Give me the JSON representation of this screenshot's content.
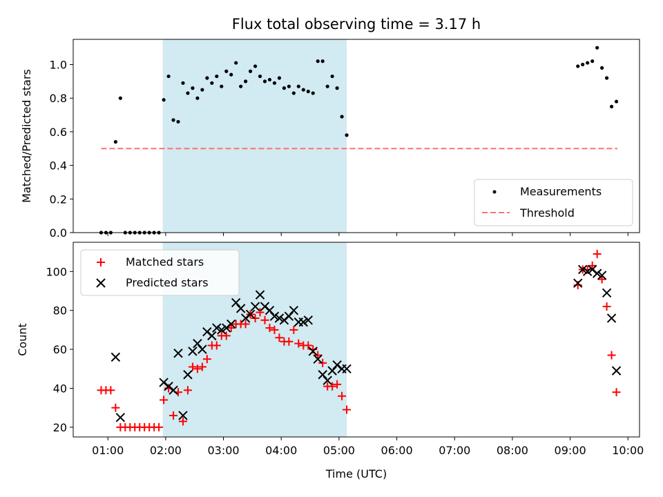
{
  "figure_title": "Flux total observing time = 3.17 h",
  "colors": {
    "shade": "#add8e6",
    "matched": "#ff0000",
    "predicted": "#000000",
    "threshold": "#ff7070",
    "measurement": "#000000"
  },
  "chart_data": [
    {
      "type": "scatter",
      "ylabel": "Matched/Predicted stars",
      "xlim": [
        "00:24",
        "10:12"
      ],
      "ylim": [
        0,
        1.15
      ],
      "y_ticks": [
        0.0,
        0.2,
        0.4,
        0.6,
        0.8,
        1.0
      ],
      "shaded_interval": [
        "01:57",
        "05:08"
      ],
      "legend": {
        "position": "lower right",
        "entries": [
          "Measurements",
          "Threshold"
        ]
      },
      "threshold": {
        "name": "Threshold",
        "value": 0.5,
        "x_range": [
          "00:53",
          "09:49"
        ]
      },
      "series": [
        {
          "name": "Measurements",
          "x": [
            "00:53",
            "00:58",
            "01:03",
            "01:08",
            "01:13",
            "01:18",
            "01:23",
            "01:28",
            "01:33",
            "01:38",
            "01:43",
            "01:48",
            "01:53",
            "01:58",
            "02:03",
            "02:08",
            "02:13",
            "02:18",
            "02:23",
            "02:28",
            "02:33",
            "02:38",
            "02:43",
            "02:48",
            "02:53",
            "02:58",
            "03:03",
            "03:08",
            "03:13",
            "03:18",
            "03:23",
            "03:28",
            "03:33",
            "03:38",
            "03:43",
            "03:48",
            "03:53",
            "03:58",
            "04:03",
            "04:08",
            "04:13",
            "04:18",
            "04:23",
            "04:28",
            "04:33",
            "04:38",
            "04:43",
            "04:48",
            "04:53",
            "04:58",
            "05:03",
            "05:08",
            "09:08",
            "09:13",
            "09:18",
            "09:23",
            "09:28",
            "09:33",
            "09:38",
            "09:43",
            "09:48"
          ],
          "y": [
            0,
            0,
            0,
            0.54,
            0.8,
            0,
            0,
            0,
            0,
            0,
            0,
            0,
            0,
            0.79,
            0.93,
            0.67,
            0.66,
            0.89,
            0.83,
            0.86,
            0.8,
            0.85,
            0.92,
            0.89,
            0.93,
            0.87,
            0.96,
            0.94,
            1.01,
            0.87,
            0.9,
            0.96,
            0.99,
            0.93,
            0.9,
            0.91,
            0.89,
            0.92,
            0.86,
            0.87,
            0.83,
            0.87,
            0.85,
            0.84,
            0.83,
            1.02,
            1.02,
            0.87,
            0.93,
            0.86,
            0.69,
            0.58,
            0.99,
            1.0,
            1.01,
            1.02,
            1.1,
            0.98,
            0.92,
            0.75,
            0.78
          ]
        }
      ]
    },
    {
      "type": "scatter",
      "xlabel": "Time (UTC)",
      "ylabel": "Count",
      "xlim": [
        "00:24",
        "10:12"
      ],
      "ylim": [
        15,
        115
      ],
      "x_ticks": [
        "01:00",
        "02:00",
        "03:00",
        "04:00",
        "05:00",
        "06:00",
        "07:00",
        "08:00",
        "09:00",
        "10:00"
      ],
      "y_ticks": [
        20,
        40,
        60,
        80,
        100
      ],
      "shaded_interval": [
        "01:57",
        "05:08"
      ],
      "legend": {
        "position": "upper left",
        "entries": [
          "Matched stars",
          "Predicted stars"
        ]
      },
      "series": [
        {
          "name": "Matched stars",
          "x": [
            "00:53",
            "00:58",
            "01:03",
            "01:08",
            "01:13",
            "01:18",
            "01:23",
            "01:28",
            "01:33",
            "01:38",
            "01:43",
            "01:48",
            "01:53",
            "01:58",
            "02:03",
            "02:08",
            "02:13",
            "02:18",
            "02:23",
            "02:28",
            "02:33",
            "02:38",
            "02:43",
            "02:48",
            "02:53",
            "02:58",
            "03:03",
            "03:08",
            "03:13",
            "03:18",
            "03:23",
            "03:28",
            "03:33",
            "03:38",
            "03:43",
            "03:48",
            "03:53",
            "03:58",
            "04:03",
            "04:08",
            "04:13",
            "04:18",
            "04:23",
            "04:28",
            "04:33",
            "04:38",
            "04:43",
            "04:48",
            "04:53",
            "04:58",
            "05:03",
            "05:08",
            "09:08",
            "09:13",
            "09:18",
            "09:23",
            "09:28",
            "09:33",
            "09:38",
            "09:43",
            "09:48"
          ],
          "y": [
            39,
            39,
            39,
            30,
            20,
            20,
            20,
            20,
            20,
            20,
            20,
            20,
            20,
            34,
            40,
            26,
            38,
            23,
            39,
            51,
            50,
            51,
            55,
            62,
            62,
            67,
            67,
            71,
            73,
            73,
            73,
            78,
            76,
            79,
            75,
            71,
            70,
            66,
            64,
            64,
            70,
            63,
            62,
            62,
            60,
            57,
            53,
            41,
            41,
            42,
            36,
            29,
            93,
            101,
            101,
            103,
            109,
            96,
            82,
            57,
            38
          ]
        },
        {
          "name": "Predicted stars",
          "x": [
            "01:08",
            "01:13",
            "01:58",
            "02:03",
            "02:08",
            "02:13",
            "02:18",
            "02:23",
            "02:28",
            "02:33",
            "02:38",
            "02:43",
            "02:48",
            "02:53",
            "02:58",
            "03:03",
            "03:08",
            "03:13",
            "03:18",
            "03:23",
            "03:28",
            "03:33",
            "03:38",
            "03:43",
            "03:48",
            "03:53",
            "03:58",
            "04:03",
            "04:08",
            "04:13",
            "04:18",
            "04:23",
            "04:28",
            "04:33",
            "04:38",
            "04:43",
            "04:48",
            "04:53",
            "04:58",
            "05:03",
            "05:08",
            "09:08",
            "09:13",
            "09:18",
            "09:23",
            "09:28",
            "09:33",
            "09:38",
            "09:43",
            "09:48"
          ],
          "y": [
            56,
            25,
            43,
            41,
            39,
            58,
            26,
            47,
            59,
            63,
            60,
            69,
            67,
            71,
            70,
            71,
            73,
            84,
            81,
            76,
            78,
            82,
            88,
            82,
            80,
            77,
            76,
            75,
            77,
            80,
            74,
            74,
            75,
            59,
            55,
            47,
            44,
            49,
            52,
            50,
            50,
            94,
            101,
            100,
            101,
            99,
            98,
            89,
            76,
            49
          ]
        }
      ]
    }
  ]
}
